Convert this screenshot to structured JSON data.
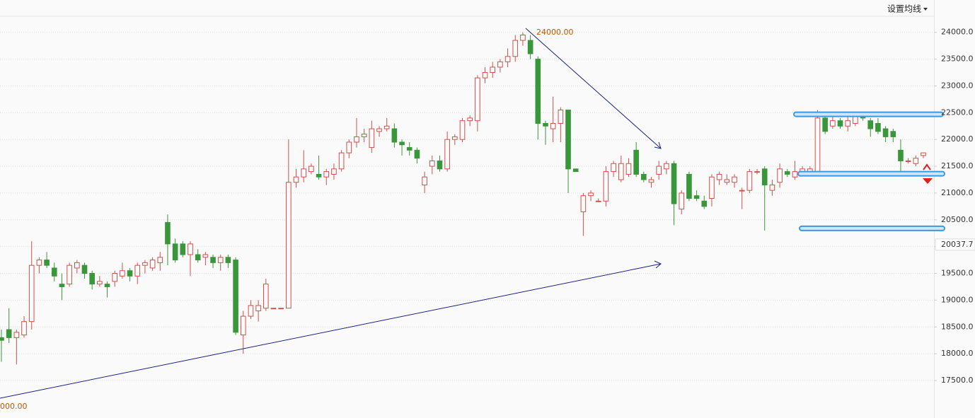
{
  "chart_data": {
    "type": "candlestick",
    "button": "设置均线",
    "annotations": [
      "24000.00",
      "000.00"
    ],
    "last_price": 20037.7,
    "levels": [
      22470,
      21360,
      20340
    ],
    "ylim": [
      16800,
      24300
    ],
    "yticks": [
      {
        "value": 17500,
        "label": "17500.0"
      },
      {
        "value": 18000,
        "label": "18000.0"
      },
      {
        "value": 18500,
        "label": "18500.0"
      },
      {
        "value": 19000,
        "label": "19000.0"
      },
      {
        "value": 19500,
        "label": "19500.0"
      },
      {
        "value": 20000,
        "label": "20000.0"
      },
      {
        "value": 20500,
        "label": "20500.0"
      },
      {
        "value": 21000,
        "label": "21000.0"
      },
      {
        "value": 21500,
        "label": "21500.0"
      },
      {
        "value": 22000,
        "label": "22000.0"
      },
      {
        "value": 22500,
        "label": "22500.0"
      },
      {
        "value": 23000,
        "label": "23000.0"
      },
      {
        "value": 23500,
        "label": "23500.0"
      },
      {
        "value": 24000,
        "label": "24000.0"
      }
    ],
    "grid": true,
    "up_color": "#d0504a",
    "down_color": "#3a963a",
    "candles": [
      [
        18300,
        18450,
        17850,
        18250
      ],
      [
        18450,
        18850,
        18200,
        18300
      ],
      [
        18300,
        18450,
        17800,
        18400
      ],
      [
        18350,
        18700,
        18300,
        18600
      ],
      [
        18600,
        20100,
        18450,
        19650
      ],
      [
        19650,
        19800,
        19500,
        19750
      ],
      [
        19750,
        19900,
        19600,
        19650
      ],
      [
        19600,
        19700,
        19350,
        19450
      ],
      [
        19300,
        19500,
        19000,
        19250
      ],
      [
        19300,
        19700,
        19250,
        19650
      ],
      [
        19600,
        19750,
        19500,
        19700
      ],
      [
        19650,
        19700,
        19400,
        19500
      ],
      [
        19500,
        19550,
        19200,
        19300
      ],
      [
        19300,
        19450,
        19250,
        19350
      ],
      [
        19300,
        19350,
        19050,
        19250
      ],
      [
        19350,
        19550,
        19250,
        19500
      ],
      [
        19450,
        19700,
        19400,
        19550
      ],
      [
        19550,
        19600,
        19350,
        19450
      ],
      [
        19450,
        19700,
        19300,
        19650
      ],
      [
        19650,
        19750,
        19500,
        19700
      ],
      [
        19600,
        19800,
        19550,
        19750
      ],
      [
        19700,
        19900,
        19550,
        19800
      ],
      [
        20450,
        20600,
        19650,
        20050
      ],
      [
        20050,
        20150,
        19700,
        19750
      ],
      [
        20050,
        20100,
        19800,
        19850
      ],
      [
        19850,
        20100,
        19450,
        20050
      ],
      [
        19850,
        19950,
        19700,
        19750
      ],
      [
        19800,
        19900,
        19650,
        19850
      ],
      [
        19800,
        19850,
        19600,
        19700
      ],
      [
        19700,
        19850,
        19550,
        19800
      ],
      [
        19800,
        19850,
        19600,
        19700
      ],
      [
        19750,
        19800,
        18350,
        18400
      ],
      [
        18350,
        18800,
        18000,
        18700
      ],
      [
        18700,
        19000,
        18650,
        18900
      ],
      [
        18800,
        19000,
        18600,
        18900
      ],
      [
        18850,
        19400,
        18800,
        19300
      ],
      [
        18850,
        18850,
        18850,
        18850
      ],
      [
        18850,
        18850,
        18850,
        18850
      ],
      [
        18850,
        22000,
        18850,
        21200
      ],
      [
        21200,
        21450,
        21100,
        21300
      ],
      [
        21300,
        21800,
        21200,
        21450
      ],
      [
        21400,
        21550,
        21350,
        21500
      ],
      [
        21350,
        21700,
        21250,
        21300
      ],
      [
        21300,
        21450,
        21150,
        21400
      ],
      [
        21350,
        21550,
        21250,
        21450
      ],
      [
        21450,
        21800,
        21400,
        21750
      ],
      [
        21750,
        22000,
        21650,
        21950
      ],
      [
        21950,
        22400,
        21850,
        22050
      ],
      [
        22050,
        22200,
        21950,
        22100
      ],
      [
        21850,
        22350,
        21750,
        22200
      ],
      [
        22150,
        22250,
        22050,
        22200
      ],
      [
        22200,
        22400,
        22150,
        22250
      ],
      [
        22200,
        22300,
        21850,
        21950
      ],
      [
        21950,
        22000,
        21700,
        21900
      ],
      [
        21850,
        21950,
        21700,
        21800
      ],
      [
        21800,
        21850,
        21550,
        21650
      ],
      [
        21150,
        21400,
        21000,
        21300
      ],
      [
        21500,
        21700,
        21350,
        21600
      ],
      [
        21600,
        21700,
        21400,
        21450
      ],
      [
        21450,
        22150,
        21400,
        22000
      ],
      [
        22000,
        22100,
        21900,
        22050
      ],
      [
        22000,
        22400,
        21950,
        22350
      ],
      [
        22350,
        22450,
        22250,
        22400
      ],
      [
        22350,
        23200,
        22150,
        23150
      ],
      [
        23150,
        23350,
        23050,
        23250
      ],
      [
        23250,
        23450,
        23150,
        23350
      ],
      [
        23350,
        23500,
        23250,
        23450
      ],
      [
        23450,
        23700,
        23350,
        23550
      ],
      [
        23550,
        23950,
        23450,
        23850
      ],
      [
        23850,
        24000,
        23750,
        23950
      ],
      [
        23850,
        23950,
        23500,
        23600
      ],
      [
        23500,
        23550,
        22000,
        22300
      ],
      [
        22300,
        22350,
        21900,
        22250
      ],
      [
        22200,
        22800,
        21950,
        22300
      ],
      [
        22300,
        22600,
        21950,
        22550
      ],
      [
        22550,
        22550,
        21000,
        21450
      ],
      [
        21450,
        21450,
        21400,
        21400
      ],
      [
        20650,
        21000,
        20200,
        20950
      ],
      [
        20950,
        21050,
        20850,
        21000
      ],
      [
        20850,
        20900,
        20850,
        20850
      ],
      [
        20850,
        21500,
        20750,
        21400
      ],
      [
        21400,
        21600,
        21300,
        21550
      ],
      [
        21250,
        21700,
        21200,
        21550
      ],
      [
        21350,
        21650,
        21300,
        21550
      ],
      [
        21800,
        21950,
        21300,
        21350
      ],
      [
        21350,
        21400,
        21200,
        21250
      ],
      [
        21200,
        21300,
        21100,
        21250
      ],
      [
        21350,
        21600,
        21250,
        21500
      ],
      [
        21450,
        21600,
        21350,
        21550
      ],
      [
        21550,
        21600,
        20400,
        20800
      ],
      [
        20700,
        21050,
        20600,
        21000
      ],
      [
        21350,
        21400,
        20850,
        20900
      ],
      [
        20950,
        21050,
        20850,
        20900
      ],
      [
        20850,
        20950,
        20700,
        20750
      ],
      [
        20900,
        21350,
        20750,
        21300
      ],
      [
        21250,
        21400,
        21150,
        21350
      ],
      [
        21200,
        21350,
        21150,
        21250
      ],
      [
        21200,
        21350,
        21100,
        21300
      ],
      [
        21050,
        21100,
        20700,
        21050
      ],
      [
        21050,
        21450,
        21000,
        21400
      ],
      [
        21400,
        21450,
        21350,
        21400
      ],
      [
        21450,
        21500,
        20300,
        21150
      ],
      [
        21050,
        21250,
        20950,
        21150
      ],
      [
        21200,
        21550,
        21100,
        21450
      ],
      [
        21400,
        21450,
        21300,
        21350
      ],
      [
        21300,
        21600,
        21250,
        21400
      ],
      [
        21400,
        21500,
        21350,
        21450
      ],
      [
        21400,
        21500,
        21350,
        21450
      ],
      [
        21400,
        22550,
        21350,
        22400
      ],
      [
        22400,
        22500,
        22100,
        22150
      ],
      [
        22250,
        22450,
        22200,
        22350
      ],
      [
        22350,
        22400,
        22200,
        22250
      ],
      [
        22250,
        22450,
        22150,
        22350
      ],
      [
        22300,
        22500,
        22250,
        22450
      ],
      [
        22450,
        22500,
        22350,
        22400
      ],
      [
        22350,
        22400,
        22050,
        22200
      ],
      [
        22300,
        22400,
        22100,
        22150
      ],
      [
        22200,
        22250,
        21950,
        22050
      ],
      [
        22150,
        22200,
        21950,
        22050
      ],
      [
        21800,
        22000,
        21350,
        21600
      ],
      [
        21600,
        21650,
        21550,
        21600
      ],
      [
        21550,
        21700,
        21500,
        21650
      ],
      [
        21700,
        21750,
        21650,
        21750
      ]
    ]
  }
}
